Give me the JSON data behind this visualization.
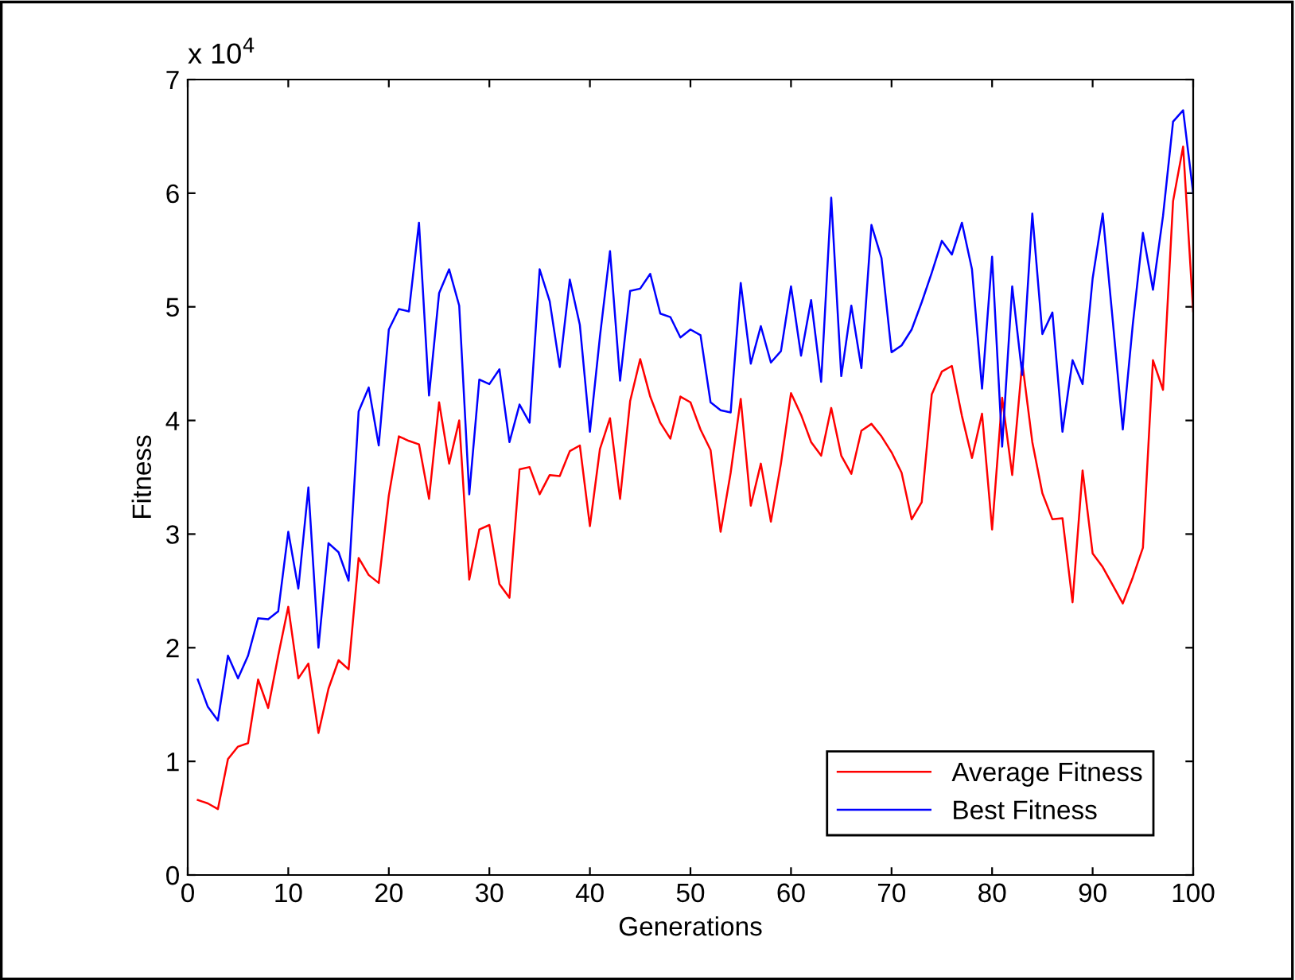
{
  "chart_data": {
    "type": "line",
    "xlabel": "Generations",
    "ylabel": "Fitness",
    "annotations": [
      "x 10$^{4}$"
    ],
    "x": [
      1,
      2,
      3,
      4,
      5,
      6,
      7,
      8,
      9,
      10,
      11,
      12,
      13,
      14,
      15,
      16,
      17,
      18,
      19,
      20,
      21,
      22,
      23,
      24,
      25,
      26,
      27,
      28,
      29,
      30,
      31,
      32,
      33,
      34,
      35,
      36,
      37,
      38,
      39,
      40,
      41,
      42,
      43,
      44,
      45,
      46,
      47,
      48,
      49,
      50,
      51,
      52,
      53,
      54,
      55,
      56,
      57,
      58,
      59,
      60,
      61,
      62,
      63,
      64,
      65,
      66,
      67,
      68,
      69,
      70,
      71,
      72,
      73,
      74,
      75,
      76,
      77,
      78,
      79,
      80,
      81,
      82,
      83,
      84,
      85,
      86,
      87,
      88,
      89,
      90,
      91,
      92,
      93,
      94,
      95,
      96,
      97,
      98,
      99,
      100
    ],
    "series": [
      {
        "name": "Average Fitness",
        "color": "#ff0000",
        "values": [
          0.66,
          0.63,
          0.58,
          1.02,
          1.13,
          1.16,
          1.72,
          1.47,
          1.93,
          2.36,
          1.73,
          1.86,
          1.25,
          1.64,
          1.89,
          1.81,
          2.79,
          2.64,
          2.57,
          3.34,
          3.86,
          3.82,
          3.79,
          3.31,
          4.16,
          3.62,
          4.0,
          2.6,
          3.04,
          3.08,
          2.56,
          2.44,
          3.57,
          3.59,
          3.35,
          3.52,
          3.51,
          3.73,
          3.78,
          3.07,
          3.75,
          4.02,
          3.31,
          4.17,
          4.54,
          4.21,
          3.98,
          3.84,
          4.21,
          4.16,
          3.92,
          3.74,
          3.02,
          3.54,
          4.19,
          3.25,
          3.62,
          3.11,
          3.62,
          4.24,
          4.05,
          3.81,
          3.69,
          4.11,
          3.69,
          3.53,
          3.91,
          3.97,
          3.86,
          3.72,
          3.54,
          3.13,
          3.28,
          4.23,
          4.43,
          4.48,
          4.04,
          3.67,
          4.06,
          3.04,
          4.2,
          3.52,
          4.51,
          3.81,
          3.36,
          3.13,
          3.14,
          2.4,
          3.56,
          2.83,
          2.71,
          2.55,
          2.39,
          2.62,
          2.88,
          4.53,
          4.27,
          5.93,
          6.41,
          4.96
        ]
      },
      {
        "name": "Best Fitness",
        "color": "#0000ff",
        "values": [
          1.72,
          1.48,
          1.36,
          1.93,
          1.73,
          1.93,
          2.26,
          2.25,
          2.32,
          3.02,
          2.52,
          3.41,
          2.0,
          2.92,
          2.84,
          2.59,
          4.08,
          4.29,
          3.78,
          4.8,
          4.98,
          4.96,
          5.74,
          4.22,
          5.12,
          5.33,
          5.01,
          3.35,
          4.36,
          4.32,
          4.45,
          3.81,
          4.14,
          3.98,
          5.33,
          5.05,
          4.47,
          5.24,
          4.84,
          3.9,
          4.74,
          5.49,
          4.35,
          5.14,
          5.16,
          5.29,
          4.94,
          4.91,
          4.73,
          4.8,
          4.75,
          4.16,
          4.09,
          4.07,
          5.21,
          4.5,
          4.83,
          4.51,
          4.61,
          5.18,
          4.57,
          5.06,
          4.34,
          5.96,
          4.39,
          5.01,
          4.46,
          5.72,
          5.43,
          4.6,
          4.66,
          4.8,
          5.04,
          5.3,
          5.58,
          5.46,
          5.74,
          5.33,
          4.28,
          5.44,
          3.77,
          5.18,
          4.4,
          5.82,
          4.76,
          4.95,
          3.9,
          4.53,
          4.32,
          5.25,
          5.82,
          4.88,
          3.92,
          4.85,
          5.65,
          5.15,
          5.8,
          6.63,
          6.73,
          6.0
        ]
      }
    ],
    "xlim": [
      0,
      100
    ],
    "xticks": [
      0,
      10,
      20,
      30,
      40,
      50,
      60,
      70,
      80,
      90,
      100
    ],
    "ylim": [
      0,
      7
    ],
    "yticks": [
      0,
      1,
      2,
      3,
      4,
      5,
      6,
      7
    ],
    "legend": "lower right",
    "grid": false,
    "marker": "none",
    "line_style": "solid"
  }
}
